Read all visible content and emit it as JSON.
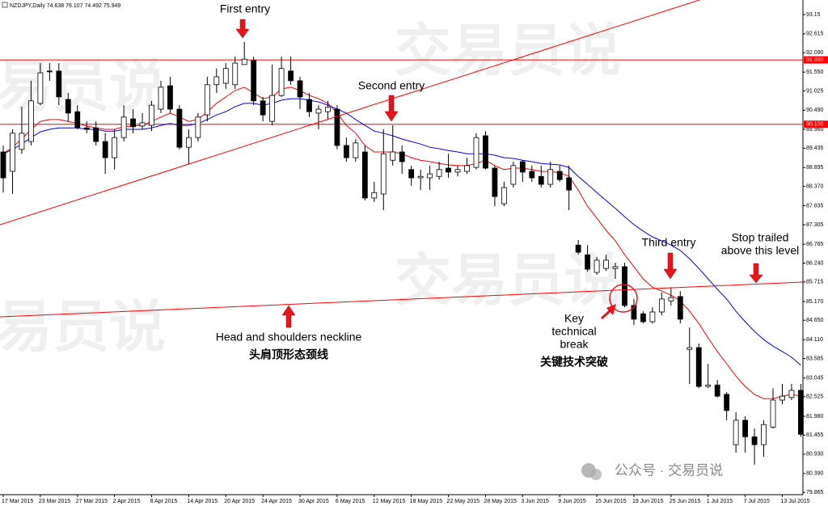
{
  "header": "NZDJPY,Daily  74.638 76.107 74.492 75.949",
  "chart_data": {
    "type": "candlestick",
    "categories": [
      "17 Mar 2015",
      null,
      null,
      null,
      "23 Mar 2015",
      null,
      null,
      null,
      "27 Mar 2015",
      null,
      null,
      null,
      "2 Apr 2015",
      null,
      null,
      null,
      "8 Apr 2015",
      null,
      null,
      null,
      "14 Apr 2015",
      null,
      null,
      null,
      "20 Apr 2015",
      null,
      null,
      null,
      "24 Apr 2015",
      null,
      null,
      null,
      "30 Apr 2015",
      null,
      null,
      null,
      "6 May 2015",
      null,
      null,
      null,
      "12 May 2015",
      null,
      null,
      null,
      "18 May 2015",
      null,
      null,
      null,
      "22 May 2015",
      null,
      null,
      null,
      "28 May 2015",
      null,
      null,
      null,
      "3 Jun 2015",
      null,
      null,
      null,
      "9 Jun 2015",
      null,
      null,
      null,
      "15 Jun 2015",
      null,
      null,
      null,
      "19 Jun 2015",
      null,
      null,
      null,
      "25 Jun 2015",
      null,
      null,
      null,
      "1 Jul 2015",
      null,
      null,
      null,
      "7 Jul 2015",
      null,
      null,
      null,
      "13 Jul 2015",
      null,
      null
    ],
    "open": [
      89.33,
      88.79,
      89.4,
      89.62,
      90.68,
      91.58,
      91.58,
      90.79,
      90.45,
      90.0,
      90.0,
      89.62,
      89.17,
      89.73,
      90.25,
      90.05,
      90.07,
      90.52,
      91.17,
      90.52,
      89.46,
      89.73,
      90.36,
      91.2,
      91.24,
      91.2,
      91.76,
      91.87,
      90.75,
      90.18,
      90.9,
      91.58,
      91.31,
      90.79,
      90.41,
      90.45,
      90.52,
      89.51,
      89.17,
      89.33,
      88.05,
      88.16,
      89.1,
      89.33,
      88.84,
      88.61,
      88.61,
      88.65,
      88.88,
      88.77,
      88.79,
      88.9,
      89.78,
      88.88,
      87.89,
      88.43,
      89.06,
      88.79,
      88.65,
      88.43,
      88.79,
      88.61,
      86.74,
      86.47,
      85.98,
      86.09,
      86.09,
      86.14,
      85.06,
      84.83,
      84.61,
      84.88,
      85.19,
      85.31,
      83.84,
      83.89,
      82.81,
      82.85,
      82.59,
      81.19,
      81.87,
      81.41,
      81.19,
      81.68,
      82.43,
      82.5,
      82.7
    ],
    "high": [
      89.51,
      89.96,
      90.59,
      91.31,
      91.8,
      91.8,
      91.8,
      90.97,
      90.63,
      90.18,
      90.18,
      89.85,
      89.96,
      90.63,
      90.52,
      90.41,
      90.75,
      91.31,
      91.42,
      90.63,
      89.96,
      90.41,
      91.42,
      91.65,
      91.8,
      91.98,
      92.39,
      91.98,
      90.86,
      91.76,
      91.98,
      91.98,
      91.42,
      90.97,
      90.63,
      90.75,
      90.63,
      89.73,
      89.69,
      89.51,
      88.5,
      89.96,
      90.07,
      89.51,
      88.95,
      88.84,
      88.95,
      89.06,
      89.28,
      88.95,
      89.17,
      89.85,
      89.91,
      88.95,
      88.5,
      89.06,
      89.1,
      88.95,
      88.95,
      89.06,
      88.95,
      88.95,
      86.88,
      86.74,
      86.41,
      86.47,
      86.25,
      86.25,
      85.24,
      84.9,
      85.01,
      85.42,
      85.57,
      85.46,
      84.45,
      84.0,
      83.44,
      82.99,
      82.65,
      82.09,
      81.98,
      81.64,
      81.87,
      82.76,
      82.88,
      82.88,
      82.88
    ],
    "low": [
      88.2,
      88.16,
      89.28,
      89.51,
      90.63,
      91.31,
      90.63,
      90.18,
      89.96,
      89.85,
      89.51,
      88.72,
      88.84,
      89.62,
      89.85,
      89.96,
      89.91,
      90.41,
      90.41,
      89.4,
      88.99,
      89.62,
      90.18,
      90.97,
      91.08,
      91.08,
      91.76,
      90.63,
      90.18,
      90.07,
      90.86,
      91.2,
      90.52,
      90.3,
      89.96,
      90.23,
      89.4,
      89.06,
      89.06,
      87.98,
      87.94,
      87.71,
      88.95,
      88.72,
      88.39,
      88.27,
      88.27,
      88.56,
      88.61,
      88.65,
      88.72,
      88.84,
      88.84,
      87.82,
      87.82,
      88.34,
      88.5,
      88.5,
      88.34,
      88.34,
      88.5,
      87.71,
      86.47,
      86.0,
      85.91,
      86.02,
      85.8,
      85.01,
      84.52,
      84.56,
      84.56,
      84.79,
      85.06,
      84.56,
      82.88,
      82.76,
      82.76,
      82.5,
      81.87,
      80.97,
      80.97,
      80.63,
      80.85,
      81.64,
      82.32,
      82.43,
      81.41
    ],
    "close": [
      88.61,
      89.85,
      89.85,
      90.75,
      91.53,
      91.57,
      90.86,
      90.41,
      90.0,
      89.96,
      89.62,
      89.17,
      89.73,
      90.3,
      90.03,
      90.14,
      90.63,
      91.13,
      90.52,
      89.46,
      89.73,
      90.3,
      91.2,
      91.42,
      91.65,
      91.8,
      91.91,
      90.75,
      90.36,
      90.9,
      91.65,
      91.31,
      90.86,
      90.45,
      90.52,
      90.57,
      89.51,
      89.17,
      89.58,
      88.05,
      88.2,
      89.28,
      89.33,
      89.06,
      88.61,
      88.65,
      88.72,
      88.84,
      88.77,
      88.84,
      88.95,
      89.73,
      88.88,
      88.09,
      88.34,
      88.95,
      88.77,
      88.61,
      88.43,
      88.84,
      88.56,
      88.27,
      86.54,
      86.07,
      86.32,
      86.32,
      86.14,
      85.06,
      84.68,
      84.61,
      84.88,
      85.24,
      85.28,
      84.68,
      83.89,
      82.81,
      82.85,
      82.54,
      82.14,
      81.87,
      81.41,
      81.19,
      81.75,
      82.43,
      82.54,
      82.7,
      81.48
    ],
    "up_color": "#ffffff",
    "down_color": "#000000",
    "moving_averages": [
      {
        "color": "#ff0000",
        "values": [
          89.28,
          89.46,
          89.69,
          89.96,
          90.18,
          90.23,
          90.23,
          90.18,
          90.12,
          90.05,
          90.0,
          89.96,
          89.96,
          90.03,
          90.05,
          90.07,
          90.18,
          90.3,
          90.41,
          90.3,
          90.18,
          90.23,
          90.45,
          90.68,
          90.86,
          91.04,
          91.13,
          90.97,
          90.81,
          90.86,
          91.08,
          91.13,
          91.04,
          90.9,
          90.81,
          90.68,
          90.41,
          90.07,
          89.85,
          89.51,
          89.33,
          89.33,
          89.33,
          89.28,
          89.17,
          89.1,
          89.06,
          89.01,
          88.97,
          88.95,
          88.95,
          89.01,
          89.1,
          88.95,
          88.84,
          88.88,
          88.88,
          88.84,
          88.79,
          88.79,
          88.75,
          88.65,
          88.27,
          87.82,
          87.49,
          87.15,
          86.86,
          86.47,
          86.14,
          85.8,
          85.57,
          85.46,
          85.35,
          85.19,
          84.9,
          84.56,
          84.16,
          83.78,
          83.44,
          83.1,
          82.81,
          82.59,
          82.47,
          82.47,
          82.54,
          82.59,
          82.54
        ]
      },
      {
        "color": "#0000ff",
        "values": [
          89.28,
          89.4,
          89.55,
          89.73,
          89.89,
          89.96,
          90.0,
          90.0,
          90.0,
          89.96,
          89.96,
          89.91,
          89.91,
          89.96,
          89.96,
          89.96,
          90.0,
          90.07,
          90.12,
          90.07,
          90.07,
          90.12,
          90.23,
          90.36,
          90.45,
          90.59,
          90.68,
          90.68,
          90.63,
          90.68,
          90.77,
          90.81,
          90.81,
          90.77,
          90.72,
          90.63,
          90.52,
          90.41,
          90.23,
          90.07,
          89.91,
          89.85,
          89.78,
          89.69,
          89.62,
          89.55,
          89.46,
          89.42,
          89.37,
          89.33,
          89.28,
          89.28,
          89.28,
          89.24,
          89.17,
          89.15,
          89.1,
          89.06,
          89.01,
          88.99,
          88.97,
          88.9,
          88.65,
          88.43,
          88.2,
          87.98,
          87.76,
          87.53,
          87.31,
          87.13,
          86.97,
          86.86,
          86.74,
          86.59,
          86.36,
          86.09,
          85.8,
          85.51,
          85.24,
          84.9,
          84.61,
          84.34,
          84.11,
          83.93,
          83.78,
          83.62,
          83.4
        ]
      }
    ],
    "hlines": [
      {
        "value": 91.89,
        "label": "91.890",
        "color": "#ff0000"
      },
      {
        "value": 90.1,
        "label": "90.100",
        "color": "#ff0000"
      }
    ],
    "ylim": [
      79.8,
      93.555
    ],
    "yticks": [
      {
        "value": 93.15,
        "label": "93.15"
      },
      {
        "value": 92.615,
        "label": "92.615"
      },
      {
        "value": 92.09,
        "label": "92.090"
      },
      {
        "value": 91.55,
        "label": "91.550"
      },
      {
        "value": 91.025,
        "label": "91.025"
      },
      {
        "value": 90.49,
        "label": "90.490"
      },
      {
        "value": 89.96,
        "label": "89.960"
      },
      {
        "value": 89.435,
        "label": "89.435"
      },
      {
        "value": 88.895,
        "label": "88.895"
      },
      {
        "value": 88.37,
        "label": "88.370"
      },
      {
        "value": 87.835,
        "label": "87.835"
      },
      {
        "value": 87.305,
        "label": "87.305"
      },
      {
        "value": 86.765,
        "label": "86.765"
      },
      {
        "value": 86.24,
        "label": "86.240"
      },
      {
        "value": 85.715,
        "label": "85.715"
      },
      {
        "value": 85.17,
        "label": "85.170"
      },
      {
        "value": 84.65,
        "label": "84.650"
      },
      {
        "value": 84.11,
        "label": "84.110"
      },
      {
        "value": 83.585,
        "label": "83.585"
      },
      {
        "value": 83.045,
        "label": "83.045"
      },
      {
        "value": 82.525,
        "label": "82.525"
      },
      {
        "value": 81.98,
        "label": "81.980"
      },
      {
        "value": 81.455,
        "label": "81.455"
      },
      {
        "value": 80.93,
        "label": "80.930"
      },
      {
        "value": 80.39,
        "label": "80.390"
      },
      {
        "value": 79.865,
        "label": "79.865"
      }
    ],
    "annotations": {
      "first_entry": "First entry",
      "second_entry": "Second entry",
      "third_entry": "Third entry",
      "stop_line1": "Stop trailed",
      "stop_line2": "above this level",
      "neckline": "Head and shoulders neckline",
      "neckline_cn": "头肩顶形态颈线",
      "key_line1": "Key",
      "key_line2": "technical",
      "key_line3": "break",
      "key_cn": "关键技术突破",
      "watermark": "交易员说",
      "footer_watermark": "公众号 · 交易员说"
    }
  }
}
